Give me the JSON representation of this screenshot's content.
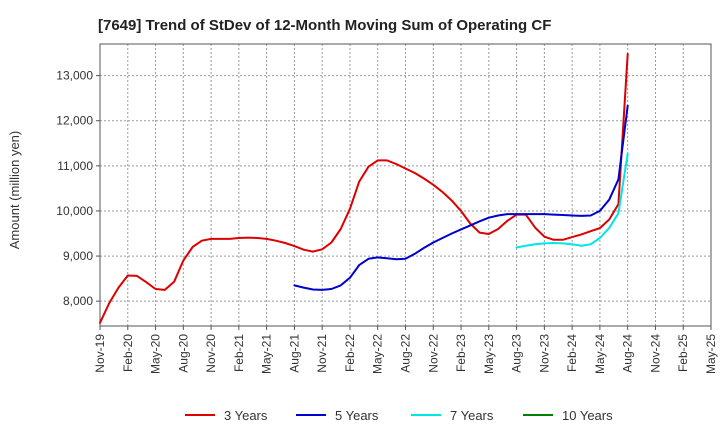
{
  "chart_data": {
    "type": "line",
    "title": "[7649]  Trend of StDev of 12-Month Moving Sum of Operating CF",
    "xlabel": "",
    "ylabel": "Amount (million yen)",
    "ylim": [
      7450,
      13700
    ],
    "yticks": [
      8000,
      9000,
      10000,
      11000,
      12000,
      13000
    ],
    "ytick_labels": [
      "8,000",
      "9,000",
      "10,000",
      "11,000",
      "12,000",
      "13,000"
    ],
    "x_range": [
      "2019-11",
      "2025-05"
    ],
    "xtick_labels": [
      "Nov-19",
      "Feb-20",
      "May-20",
      "Aug-20",
      "Nov-20",
      "Feb-21",
      "May-21",
      "Aug-21",
      "Nov-21",
      "Feb-22",
      "May-22",
      "Aug-22",
      "Nov-22",
      "Feb-23",
      "May-23",
      "Aug-23",
      "Nov-23",
      "Feb-24",
      "May-24",
      "Aug-24",
      "Nov-24",
      "Feb-25",
      "May-25"
    ],
    "grid": true,
    "legend_position": "bottom",
    "series": [
      {
        "name": "3 Years",
        "color": "#dd0000",
        "x": [
          "2019-11",
          "2019-12",
          "2020-01",
          "2020-02",
          "2020-03",
          "2020-04",
          "2020-05",
          "2020-06",
          "2020-07",
          "2020-08",
          "2020-09",
          "2020-10",
          "2020-11",
          "2020-12",
          "2021-01",
          "2021-02",
          "2021-03",
          "2021-04",
          "2021-05",
          "2021-06",
          "2021-07",
          "2021-08",
          "2021-09",
          "2021-10",
          "2021-11",
          "2021-12",
          "2022-01",
          "2022-02",
          "2022-03",
          "2022-04",
          "2022-05",
          "2022-06",
          "2022-07",
          "2022-08",
          "2022-09",
          "2022-10",
          "2022-11",
          "2022-12",
          "2023-01",
          "2023-02",
          "2023-03",
          "2023-04",
          "2023-05",
          "2023-06",
          "2023-07",
          "2023-08",
          "2023-09",
          "2023-10",
          "2023-11",
          "2023-12",
          "2024-01",
          "2024-02",
          "2024-03",
          "2024-04",
          "2024-05",
          "2024-06",
          "2024-07",
          "2024-08"
        ],
        "values": [
          7520,
          7960,
          8300,
          8570,
          8560,
          8420,
          8270,
          8250,
          8430,
          8900,
          9200,
          9340,
          9380,
          9380,
          9380,
          9400,
          9410,
          9400,
          9380,
          9340,
          9290,
          9220,
          9140,
          9100,
          9150,
          9300,
          9600,
          10050,
          10650,
          10980,
          11120,
          11120,
          11040,
          10940,
          10840,
          10720,
          10580,
          10420,
          10230,
          10000,
          9720,
          9520,
          9490,
          9600,
          9780,
          9920,
          9920,
          9630,
          9430,
          9360,
          9360,
          9420,
          9480,
          9550,
          9620,
          9810,
          10150,
          13480
        ]
      },
      {
        "name": "5 Years",
        "color": "#0000cc",
        "x": [
          "2021-08",
          "2021-09",
          "2021-10",
          "2021-11",
          "2021-12",
          "2022-01",
          "2022-02",
          "2022-03",
          "2022-04",
          "2022-05",
          "2022-06",
          "2022-07",
          "2022-08",
          "2022-09",
          "2022-10",
          "2022-11",
          "2022-12",
          "2023-01",
          "2023-02",
          "2023-03",
          "2023-04",
          "2023-05",
          "2023-06",
          "2023-07",
          "2023-08",
          "2023-09",
          "2023-10",
          "2023-11",
          "2023-12",
          "2024-01",
          "2024-02",
          "2024-03",
          "2024-04",
          "2024-05",
          "2024-06",
          "2024-07",
          "2024-08"
        ],
        "values": [
          8350,
          8300,
          8260,
          8250,
          8270,
          8350,
          8520,
          8800,
          8940,
          8970,
          8950,
          8930,
          8940,
          9050,
          9180,
          9300,
          9400,
          9500,
          9590,
          9680,
          9770,
          9850,
          9900,
          9930,
          9930,
          9930,
          9930,
          9930,
          9920,
          9910,
          9900,
          9890,
          9900,
          10000,
          10250,
          10700,
          12330
        ]
      },
      {
        "name": "7 Years",
        "color": "#00e5e5",
        "x": [
          "2023-08",
          "2023-09",
          "2023-10",
          "2023-11",
          "2023-12",
          "2024-01",
          "2024-02",
          "2024-03",
          "2024-04",
          "2024-05",
          "2024-06",
          "2024-07",
          "2024-08"
        ],
        "values": [
          9190,
          9230,
          9260,
          9280,
          9290,
          9280,
          9260,
          9230,
          9260,
          9400,
          9620,
          9950,
          11270
        ]
      },
      {
        "name": "10 Years",
        "color": "#008000",
        "x": [],
        "values": []
      }
    ]
  }
}
